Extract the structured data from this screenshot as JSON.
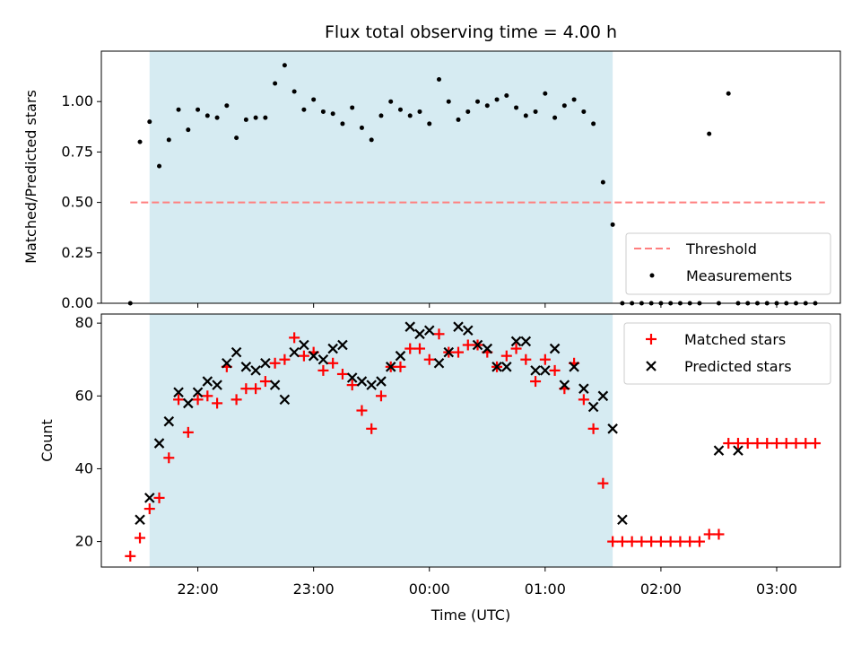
{
  "chart_data": [
    {
      "type": "scatter",
      "title": "Flux total observing time = 4.00 h",
      "ylabel": "Matched/Predicted stars",
      "xlabel": "",
      "ylim": [
        0,
        1.25
      ],
      "yticks": [
        "0.00",
        "0.25",
        "0.50",
        "0.75",
        "1.00"
      ],
      "legend_position": "lower-right",
      "observing_window": [
        "21:35",
        "01:35"
      ],
      "threshold": {
        "name": "Threshold",
        "value": 0.5,
        "x_range": [
          "21:25",
          "03:25"
        ],
        "color": "#ff7f7f",
        "style": "dashed"
      },
      "series": [
        {
          "name": "Measurements",
          "color": "#000000",
          "marker": "dot",
          "x": [
            "21:25",
            "21:30",
            "21:35",
            "21:40",
            "21:45",
            "21:50",
            "21:55",
            "22:00",
            "22:05",
            "22:10",
            "22:15",
            "22:20",
            "22:25",
            "22:30",
            "22:35",
            "22:40",
            "22:45",
            "22:50",
            "22:55",
            "23:00",
            "23:05",
            "23:10",
            "23:15",
            "23:20",
            "23:25",
            "23:30",
            "23:35",
            "23:40",
            "23:45",
            "23:50",
            "23:55",
            "00:00",
            "00:05",
            "00:10",
            "00:15",
            "00:20",
            "00:25",
            "00:30",
            "00:35",
            "00:40",
            "00:45",
            "00:50",
            "00:55",
            "01:00",
            "01:05",
            "01:10",
            "01:15",
            "01:20",
            "01:25",
            "01:30",
            "01:35",
            "01:40",
            "01:45",
            "01:50",
            "01:55",
            "02:00",
            "02:05",
            "02:10",
            "02:15",
            "02:20",
            "02:25",
            "02:30",
            "02:35",
            "02:40",
            "02:45",
            "02:50",
            "02:55",
            "03:00",
            "03:05",
            "03:10",
            "03:15",
            "03:20"
          ],
          "y": [
            0.0,
            0.8,
            0.9,
            0.68,
            0.81,
            0.96,
            0.86,
            0.96,
            0.93,
            0.92,
            0.98,
            0.82,
            0.91,
            0.92,
            0.92,
            1.09,
            1.18,
            1.05,
            0.96,
            1.01,
            0.95,
            0.94,
            0.89,
            0.97,
            0.87,
            0.81,
            0.93,
            1.0,
            0.96,
            0.93,
            0.95,
            0.89,
            1.11,
            1.0,
            0.91,
            0.95,
            1.0,
            0.98,
            1.01,
            1.03,
            0.97,
            0.93,
            0.95,
            1.04,
            0.92,
            0.98,
            1.01,
            0.95,
            0.89,
            0.6,
            0.39,
            0.0,
            0.0,
            0.0,
            0.0,
            0.0,
            0.0,
            0.0,
            0.0,
            0.0,
            0.84,
            0.0,
            1.04,
            0.0,
            0.0,
            0.0,
            0.0,
            0.0,
            0.0,
            0.0,
            0.0,
            0.0
          ]
        }
      ]
    },
    {
      "type": "scatter",
      "xlabel": "Time (UTC)",
      "ylabel": "Count",
      "ylim": [
        13,
        82
      ],
      "yticks": [
        "20",
        "40",
        "60",
        "80"
      ],
      "xticks": [
        "22:00",
        "23:00",
        "00:00",
        "01:00",
        "02:00",
        "03:00"
      ],
      "legend_position": "top-right",
      "observing_window": [
        "21:35",
        "01:35"
      ],
      "series": [
        {
          "name": "Matched stars",
          "color": "#ff0000",
          "marker": "plus",
          "x": [
            "21:25",
            "21:30",
            "21:35",
            "21:40",
            "21:45",
            "21:50",
            "21:55",
            "22:00",
            "22:05",
            "22:10",
            "22:15",
            "22:20",
            "22:25",
            "22:30",
            "22:35",
            "22:40",
            "22:45",
            "22:50",
            "22:55",
            "23:00",
            "23:05",
            "23:10",
            "23:15",
            "23:20",
            "23:25",
            "23:30",
            "23:35",
            "23:40",
            "23:45",
            "23:50",
            "23:55",
            "00:00",
            "00:05",
            "00:10",
            "00:15",
            "00:20",
            "00:25",
            "00:30",
            "00:35",
            "00:40",
            "00:45",
            "00:50",
            "00:55",
            "01:00",
            "01:05",
            "01:10",
            "01:15",
            "01:20",
            "01:25",
            "01:30",
            "01:35",
            "01:40",
            "01:45",
            "01:50",
            "01:55",
            "02:00",
            "02:05",
            "02:10",
            "02:15",
            "02:20",
            "02:25",
            "02:30",
            "02:35",
            "02:40",
            "02:45",
            "02:50",
            "02:55",
            "03:00",
            "03:05",
            "03:10",
            "03:15",
            "03:20"
          ],
          "y": [
            16,
            21,
            29,
            32,
            43,
            59,
            50,
            59,
            60,
            58,
            68,
            59,
            62,
            62,
            64,
            69,
            70,
            76,
            71,
            72,
            67,
            69,
            66,
            63,
            56,
            51,
            60,
            68,
            68,
            73,
            73,
            70,
            77,
            72,
            72,
            74,
            74,
            72,
            68,
            71,
            73,
            70,
            64,
            70,
            67,
            62,
            69,
            59,
            51,
            36,
            20,
            20,
            20,
            20,
            20,
            20,
            20,
            20,
            20,
            20,
            22,
            22,
            47,
            47,
            47,
            47,
            47,
            47,
            47,
            47,
            47,
            47
          ]
        },
        {
          "name": "Predicted stars",
          "color": "#000000",
          "marker": "cross",
          "x": [
            "21:30",
            "21:35",
            "21:40",
            "21:45",
            "21:50",
            "21:55",
            "22:00",
            "22:05",
            "22:10",
            "22:15",
            "22:20",
            "22:25",
            "22:30",
            "22:35",
            "22:40",
            "22:45",
            "22:50",
            "22:55",
            "23:00",
            "23:05",
            "23:10",
            "23:15",
            "23:20",
            "23:25",
            "23:30",
            "23:35",
            "23:40",
            "23:45",
            "23:50",
            "23:55",
            "00:00",
            "00:05",
            "00:10",
            "00:15",
            "00:20",
            "00:25",
            "00:30",
            "00:35",
            "00:40",
            "00:45",
            "00:50",
            "00:55",
            "01:00",
            "01:05",
            "01:10",
            "01:15",
            "01:20",
            "01:25",
            "01:30",
            "01:35",
            "01:40",
            "02:30",
            "02:40"
          ],
          "y": [
            26,
            32,
            47,
            53,
            61,
            58,
            61,
            64,
            63,
            69,
            72,
            68,
            67,
            69,
            63,
            59,
            72,
            74,
            71,
            70,
            73,
            74,
            65,
            64,
            63,
            64,
            68,
            71,
            79,
            77,
            78,
            69,
            72,
            79,
            78,
            74,
            73,
            68,
            68,
            75,
            75,
            67,
            67,
            73,
            63,
            68,
            62,
            57,
            60,
            51,
            26,
            45,
            45
          ]
        }
      ]
    }
  ]
}
